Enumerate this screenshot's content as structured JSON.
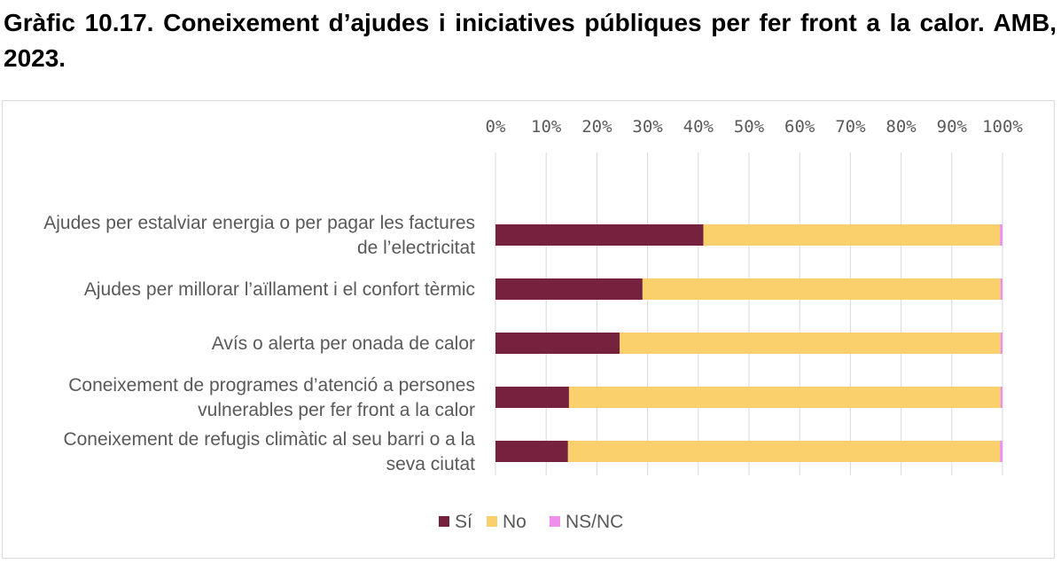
{
  "title": "Gràfic 10.17. Coneixement d’ajudes i iniciatives públiques per fer front a la calor. AMB, 2023.",
  "chart_data": {
    "type": "bar",
    "orientation": "horizontal",
    "stacked": "percent",
    "categories": [
      [
        "Ajudes per estalviar energia o per pagar les factures",
        "de l’electricitat"
      ],
      [
        "Ajudes per millorar l’aïllament i el confort tèrmic"
      ],
      [
        "Avís o alerta per onada de calor"
      ],
      [
        "Coneixement de programes d’atenció a persones",
        "vulnerables per fer front a la calor"
      ],
      [
        "Coneixement de refugis climàtic al seu barri o a la",
        "seva ciutat"
      ]
    ],
    "series": [
      {
        "name": "Sí",
        "color": "#76223f",
        "values": [
          41,
          29,
          24.5,
          14.5,
          14.3
        ]
      },
      {
        "name": "No",
        "color": "#f9d06b",
        "values": [
          58.5,
          70.6,
          75.1,
          85.1,
          85.2
        ]
      },
      {
        "name": "NS/NC",
        "color": "#ee8fe9",
        "values": [
          0.5,
          0.4,
          0.4,
          0.4,
          0.5
        ]
      }
    ],
    "x_ticks": [
      "0%",
      "10%",
      "20%",
      "30%",
      "40%",
      "50%",
      "60%",
      "70%",
      "80%",
      "90%",
      "100%"
    ],
    "xlim": [
      0,
      100
    ],
    "x_axis_position": "top",
    "grid": true,
    "legend_position": "bottom"
  }
}
